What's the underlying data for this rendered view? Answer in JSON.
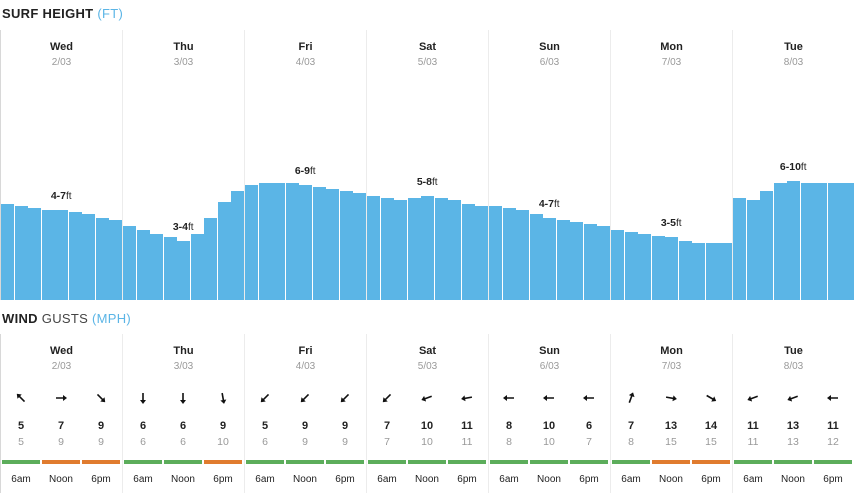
{
  "surf": {
    "title": "SURF HEIGHT",
    "unit": "(FT)",
    "days": [
      {
        "name": "Wed",
        "date": "2/03",
        "range": "4-7",
        "ft": "ft",
        "label_bar": 4,
        "heights": [
          4.9,
          4.8,
          4.7,
          4.6,
          4.6,
          4.5,
          4.4,
          4.2,
          4.1
        ]
      },
      {
        "name": "Thu",
        "date": "3/03",
        "range": "3-4",
        "ft": "ft",
        "label_bar": 4,
        "heights": [
          3.8,
          3.6,
          3.4,
          3.2,
          3.0,
          3.4,
          4.2,
          5.0,
          5.6
        ]
      },
      {
        "name": "Fri",
        "date": "4/03",
        "range": "6-9",
        "ft": "ft",
        "label_bar": 4,
        "heights": [
          5.9,
          6.0,
          6.0,
          6.0,
          5.9,
          5.8,
          5.7,
          5.6,
          5.5
        ]
      },
      {
        "name": "Sat",
        "date": "5/03",
        "range": "5-8",
        "ft": "ft",
        "label_bar": 4,
        "heights": [
          5.3,
          5.2,
          5.1,
          5.2,
          5.3,
          5.2,
          5.1,
          4.9,
          4.8
        ]
      },
      {
        "name": "Sun",
        "date": "6/03",
        "range": "4-7",
        "ft": "ft",
        "label_bar": 4,
        "heights": [
          4.8,
          4.7,
          4.6,
          4.4,
          4.2,
          4.1,
          4.0,
          3.9,
          3.8
        ]
      },
      {
        "name": "Mon",
        "date": "7/03",
        "range": "3-5",
        "ft": "ft",
        "label_bar": 4,
        "heights": [
          3.6,
          3.5,
          3.4,
          3.3,
          3.2,
          3.0,
          2.9,
          2.9,
          2.9
        ]
      },
      {
        "name": "Tue",
        "date": "8/03",
        "range": "6-10",
        "ft": "ft",
        "label_bar": 4,
        "heights": [
          5.2,
          5.1,
          5.6,
          6.0,
          6.1,
          6.0,
          6.0,
          6.0,
          6.0
        ]
      }
    ]
  },
  "wind": {
    "title_bold": "WIND",
    "title_light": "GUSTS",
    "unit": "(MPH)",
    "days": [
      {
        "name": "Wed",
        "date": "2/03",
        "cells": [
          {
            "dir": 315,
            "speed": "5",
            "gust": "5",
            "status": "good",
            "time": "6am"
          },
          {
            "dir": 90,
            "speed": "7",
            "gust": "9",
            "status": "fair",
            "time": "Noon"
          },
          {
            "dir": 135,
            "speed": "9",
            "gust": "9",
            "status": "fair",
            "time": "6pm"
          }
        ]
      },
      {
        "name": "Thu",
        "date": "3/03",
        "cells": [
          {
            "dir": 180,
            "speed": "6",
            "gust": "6",
            "status": "good",
            "time": "6am"
          },
          {
            "dir": 180,
            "speed": "6",
            "gust": "6",
            "status": "good",
            "time": "Noon"
          },
          {
            "dir": 170,
            "speed": "9",
            "gust": "10",
            "status": "fair",
            "time": "6pm"
          }
        ]
      },
      {
        "name": "Fri",
        "date": "4/03",
        "cells": [
          {
            "dir": 225,
            "speed": "5",
            "gust": "6",
            "status": "good",
            "time": "6am"
          },
          {
            "dir": 225,
            "speed": "9",
            "gust": "9",
            "status": "good",
            "time": "Noon"
          },
          {
            "dir": 225,
            "speed": "9",
            "gust": "9",
            "status": "good",
            "time": "6pm"
          }
        ]
      },
      {
        "name": "Sat",
        "date": "5/03",
        "cells": [
          {
            "dir": 225,
            "speed": "7",
            "gust": "7",
            "status": "good",
            "time": "6am"
          },
          {
            "dir": 250,
            "speed": "10",
            "gust": "10",
            "status": "good",
            "time": "Noon"
          },
          {
            "dir": 260,
            "speed": "11",
            "gust": "11",
            "status": "good",
            "time": "6pm"
          }
        ]
      },
      {
        "name": "Sun",
        "date": "6/03",
        "cells": [
          {
            "dir": 270,
            "speed": "8",
            "gust": "8",
            "status": "good",
            "time": "6am"
          },
          {
            "dir": 270,
            "speed": "10",
            "gust": "10",
            "status": "good",
            "time": "Noon"
          },
          {
            "dir": 270,
            "speed": "6",
            "gust": "7",
            "status": "good",
            "time": "6pm"
          }
        ]
      },
      {
        "name": "Mon",
        "date": "7/03",
        "cells": [
          {
            "dir": 20,
            "speed": "7",
            "gust": "8",
            "status": "good",
            "time": "6am"
          },
          {
            "dir": 100,
            "speed": "13",
            "gust": "15",
            "status": "fair",
            "time": "Noon"
          },
          {
            "dir": 120,
            "speed": "14",
            "gust": "15",
            "status": "fair",
            "time": "6pm"
          }
        ]
      },
      {
        "name": "Tue",
        "date": "8/03",
        "cells": [
          {
            "dir": 250,
            "speed": "11",
            "gust": "11",
            "status": "good",
            "time": "6am"
          },
          {
            "dir": 250,
            "speed": "13",
            "gust": "13",
            "status": "good",
            "time": "Noon"
          },
          {
            "dir": 270,
            "speed": "11",
            "gust": "12",
            "status": "good",
            "time": "6pm"
          }
        ]
      }
    ]
  },
  "colors": {
    "bar": "#5bb5e6",
    "good": "#5cad5b",
    "fair": "#e07b2e"
  }
}
